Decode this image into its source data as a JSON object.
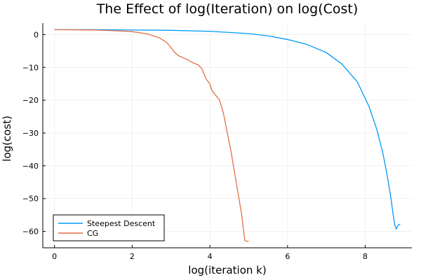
{
  "chart_data": {
    "type": "line",
    "title": "The Effect of log(Iteration) on log(Cost)",
    "xlabel": "log(iteration k)",
    "ylabel": "log(cost)",
    "xlim": [
      -0.3,
      9.2
    ],
    "ylim": [
      -65,
      3.5
    ],
    "xticks": [
      0,
      2,
      4,
      6,
      8
    ],
    "yticks": [
      0,
      -10,
      -20,
      -30,
      -40,
      -50,
      -60
    ],
    "grid": true,
    "legend_position": "bottom-left",
    "series": [
      {
        "name": "Steepest Descent",
        "color": "#009AFA",
        "points": [
          [
            0,
            1.5
          ],
          [
            1,
            1.5
          ],
          [
            2,
            1.4
          ],
          [
            3,
            1.3
          ],
          [
            4,
            1.0
          ],
          [
            5,
            0.3
          ],
          [
            5.5,
            -0.4
          ],
          [
            6,
            -1.5
          ],
          [
            6.5,
            -3.0
          ],
          [
            7,
            -5.5
          ],
          [
            7.4,
            -9.0
          ],
          [
            7.8,
            -14.5
          ],
          [
            8.1,
            -22.0
          ],
          [
            8.3,
            -29.0
          ],
          [
            8.45,
            -36.0
          ],
          [
            8.55,
            -42.0
          ],
          [
            8.65,
            -49.0
          ],
          [
            8.72,
            -55.0
          ],
          [
            8.76,
            -58.0
          ],
          [
            8.8,
            -59.3
          ],
          [
            8.85,
            -58.0
          ],
          [
            8.9,
            -57.8
          ]
        ]
      },
      {
        "name": "CG",
        "color": "#E26F46",
        "points": [
          [
            0,
            1.5
          ],
          [
            1,
            1.4
          ],
          [
            1.5,
            1.2
          ],
          [
            2,
            0.9
          ],
          [
            2.4,
            0.2
          ],
          [
            2.7,
            -1.0
          ],
          [
            2.9,
            -2.5
          ],
          [
            3.0,
            -4.0
          ],
          [
            3.1,
            -5.5
          ],
          [
            3.2,
            -6.5
          ],
          [
            3.3,
            -7.0
          ],
          [
            3.4,
            -7.5
          ],
          [
            3.5,
            -8.2
          ],
          [
            3.6,
            -8.8
          ],
          [
            3.7,
            -9.2
          ],
          [
            3.8,
            -10.5
          ],
          [
            3.9,
            -13.5
          ],
          [
            4.0,
            -15.0
          ],
          [
            4.05,
            -17.0
          ],
          [
            4.15,
            -18.5
          ],
          [
            4.25,
            -20.0
          ],
          [
            4.35,
            -24.0
          ],
          [
            4.45,
            -30.0
          ],
          [
            4.55,
            -36.0
          ],
          [
            4.65,
            -43.0
          ],
          [
            4.75,
            -50.0
          ],
          [
            4.82,
            -55.0
          ],
          [
            4.87,
            -60.0
          ],
          [
            4.9,
            -62.8
          ],
          [
            4.95,
            -63.0
          ],
          [
            5.0,
            -63.0
          ]
        ]
      }
    ]
  }
}
